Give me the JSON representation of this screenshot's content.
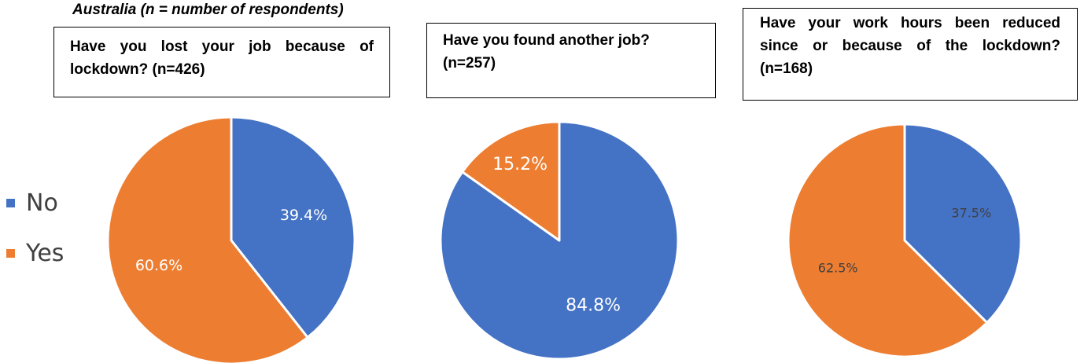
{
  "title": "Australia (n = number of respondents)",
  "colors": {
    "no": "#4472C4",
    "yes": "#ED7D31"
  },
  "legend": [
    {
      "label": "No",
      "color": "#4472C4"
    },
    {
      "label": "Yes",
      "color": "#ED7D31"
    }
  ],
  "questions": [
    "Have you lost your job because of lockdown? (n=426)",
    "Have you found another job? (n=257)",
    "Have your work hours been reduced since or because of the lockdown? (n=168)"
  ],
  "chart_data": [
    {
      "type": "pie",
      "title": "Have you lost your job because of lockdown? (n=426)",
      "categories": [
        "No",
        "Yes"
      ],
      "values": [
        39.4,
        60.6
      ],
      "labels": [
        "39.4%",
        "60.6%"
      ],
      "legend_position": "left"
    },
    {
      "type": "pie",
      "title": "Have you found another job? (n=257)",
      "categories": [
        "No",
        "Yes"
      ],
      "values": [
        84.8,
        15.2
      ],
      "labels": [
        "84.8%",
        "15.2%"
      ]
    },
    {
      "type": "pie",
      "title": "Have your work hours been reduced since or because of the lockdown? (n=168)",
      "categories": [
        "No",
        "Yes"
      ],
      "values": [
        37.5,
        62.5
      ],
      "labels": [
        "37.5%",
        "62.5%"
      ]
    }
  ]
}
